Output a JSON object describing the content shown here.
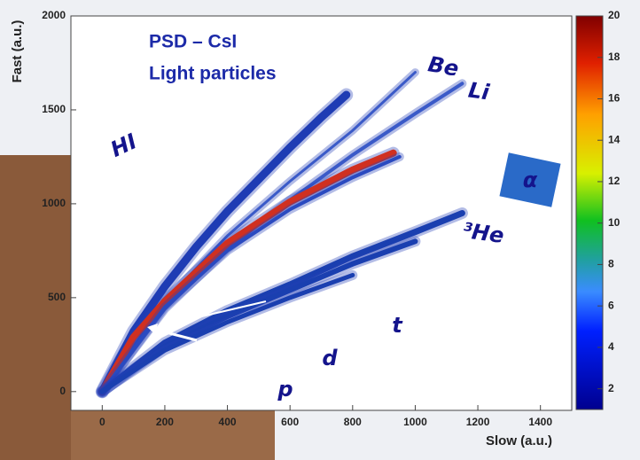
{
  "chart_data": {
    "type": "scatter",
    "title": [
      "PSD – CsI",
      "Light particles"
    ],
    "x_label": "Slow (a.u.)",
    "y_label": "Fast (a.u.)",
    "xlim": [
      -100,
      1500
    ],
    "xticks": [
      0,
      200,
      400,
      600,
      800,
      1000,
      1200,
      1400
    ],
    "ylim": [
      -100,
      2000
    ],
    "yticks": [
      0,
      500,
      1000,
      1500,
      2000
    ],
    "colorbar": {
      "lim": [
        1,
        20
      ],
      "ticks": [
        2,
        4,
        6,
        8,
        10,
        12,
        14,
        16,
        18,
        20
      ]
    },
    "series": [
      {
        "name": "HI",
        "color": "#1e3cb4",
        "x": [
          0,
          100,
          200,
          300,
          400,
          500,
          600,
          700,
          780
        ],
        "values": [
          0,
          320,
          560,
          770,
          960,
          1130,
          1300,
          1460,
          1580
        ]
      },
      {
        "name": "Be",
        "color": "#3a5ac8",
        "x": [
          0,
          200,
          400,
          600,
          800,
          1000
        ],
        "values": [
          0,
          480,
          830,
          1120,
          1390,
          1700
        ]
      },
      {
        "name": "Li",
        "color": "#3a5ac8",
        "x": [
          0,
          200,
          400,
          600,
          800,
          1000,
          1150
        ],
        "values": [
          0,
          440,
          760,
          1020,
          1260,
          1480,
          1640
        ]
      },
      {
        "name": "α",
        "color": "#d03020",
        "x": [
          0,
          100,
          200,
          400,
          600,
          800,
          930
        ],
        "values": [
          0,
          290,
          480,
          790,
          1010,
          1180,
          1270
        ]
      },
      {
        "name": "³He",
        "color": "#2a4ac0",
        "x": [
          0,
          200,
          400,
          600,
          800,
          950
        ],
        "values": [
          0,
          450,
          750,
          970,
          1140,
          1250
        ]
      },
      {
        "name": "t",
        "color": "#1a3fb0",
        "x": [
          0,
          200,
          400,
          600,
          800,
          1000,
          1150
        ],
        "values": [
          0,
          260,
          430,
          570,
          720,
          850,
          950
        ]
      },
      {
        "name": "d",
        "color": "#1a3fb0",
        "x": [
          0,
          200,
          400,
          600,
          800,
          1000
        ],
        "values": [
          0,
          240,
          400,
          540,
          680,
          800
        ]
      },
      {
        "name": "p",
        "color": "#1a3fb0",
        "x": [
          0,
          200,
          400,
          600,
          800
        ],
        "values": [
          0,
          220,
          370,
          500,
          620
        ]
      }
    ]
  }
}
